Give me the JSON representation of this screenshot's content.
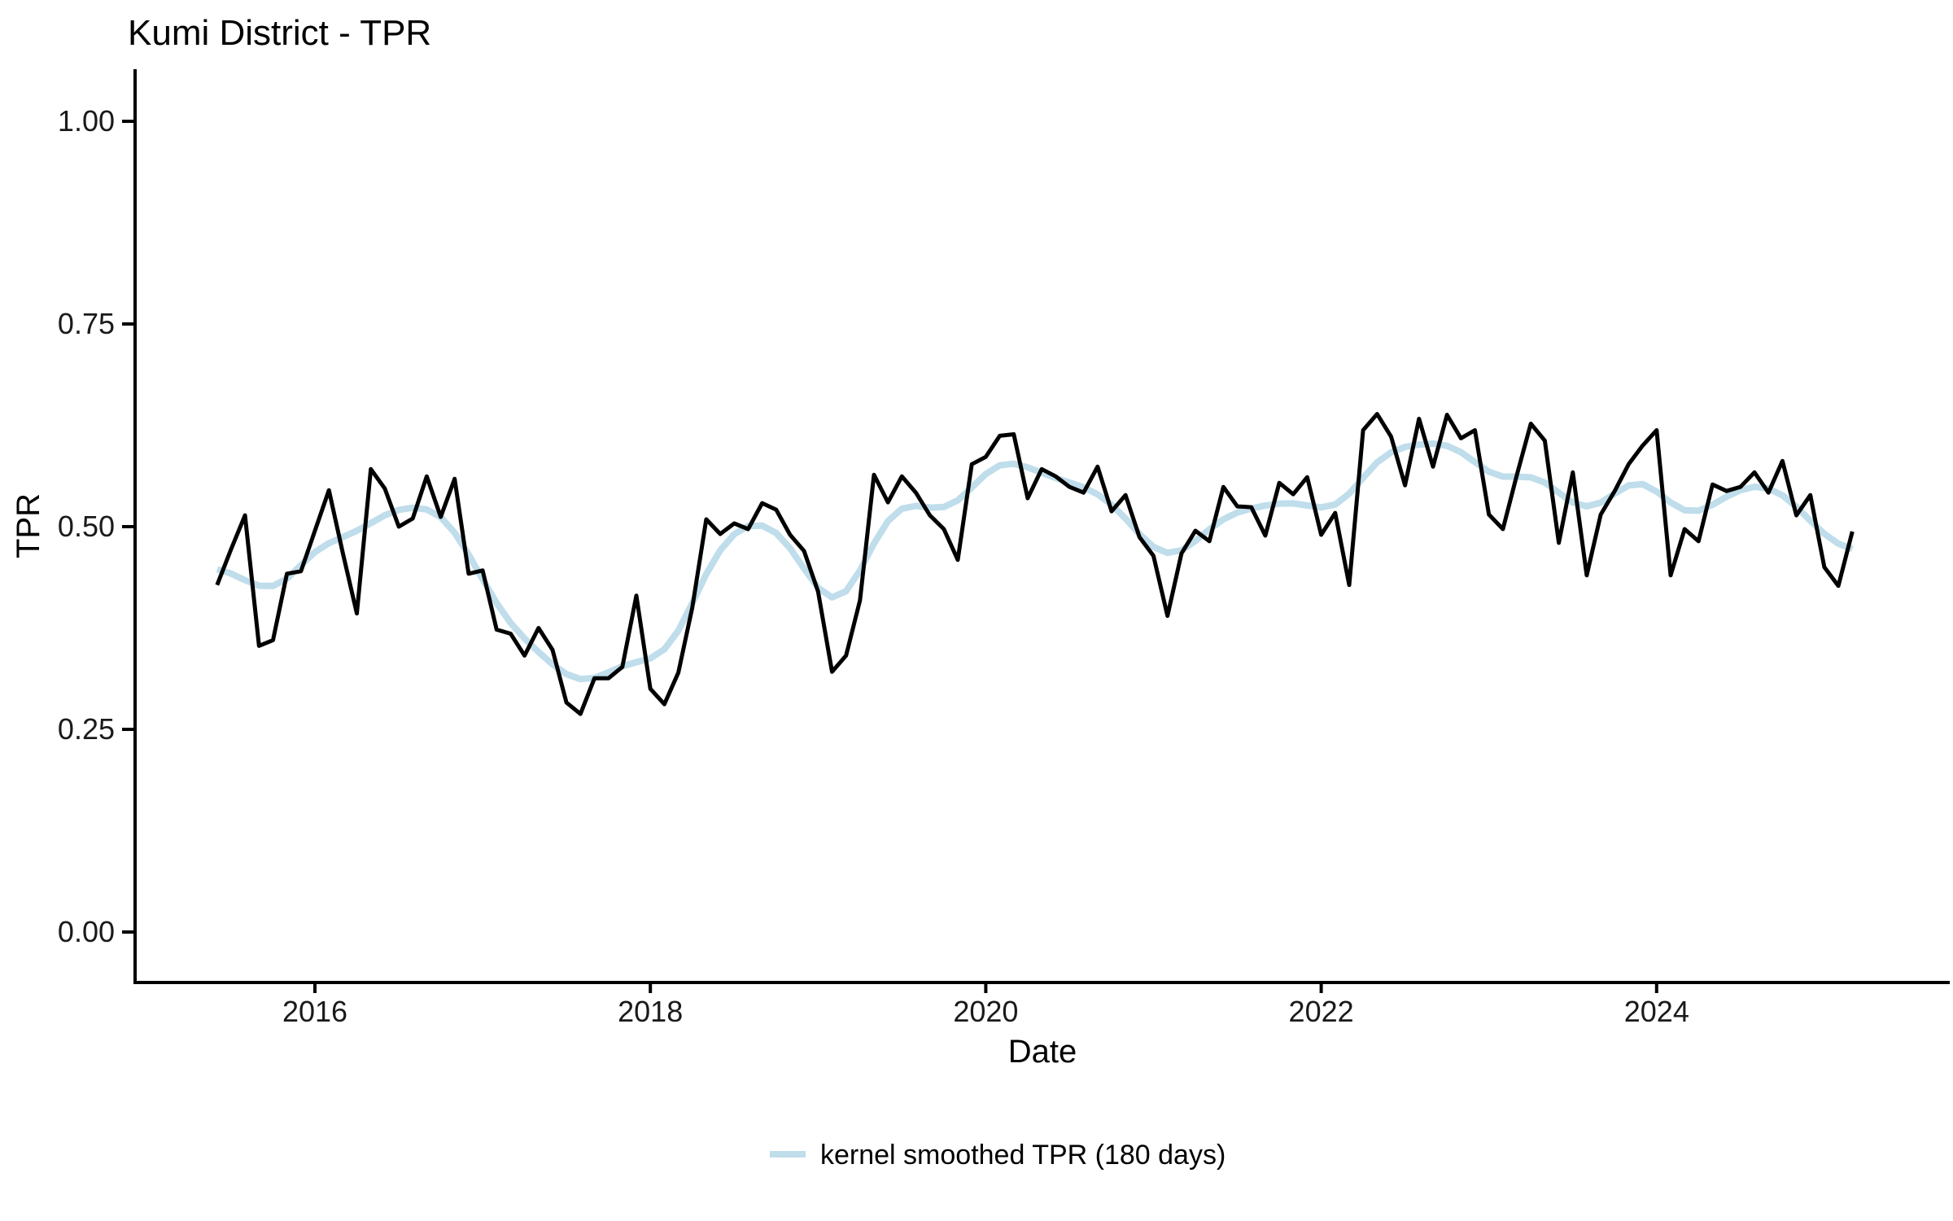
{
  "title": "Kumi District - TPR",
  "axes": {
    "x": {
      "label": "Date",
      "ticks": [
        "2016",
        "2018",
        "2020",
        "2022",
        "2024"
      ]
    },
    "y": {
      "label": "TPR",
      "ticks": [
        "0.00",
        "0.25",
        "0.50",
        "0.75",
        "1.00"
      ]
    }
  },
  "legend": {
    "items": [
      {
        "label": "kernel smoothed TPR (180 days)",
        "color": "#BFDDEB"
      }
    ]
  },
  "colors": {
    "raw_line": "#000000",
    "smoothed_line": "#BFDDEB",
    "axis_line": "#000000",
    "background": "#ffffff"
  },
  "chart_data": {
    "type": "line",
    "title": "Kumi District - TPR",
    "xlabel": "Date",
    "ylabel": "TPR",
    "frequency": "monthly",
    "x_start": "2015-06",
    "x_end": "2025-03",
    "x_tick_values": [
      2016,
      2018,
      2020,
      2022,
      2024
    ],
    "y_tick_values": [
      0,
      0.25,
      0.5,
      0.75,
      1
    ],
    "ylim": [
      0,
      1
    ],
    "grid": false,
    "legend_position": "bottom",
    "series": [
      {
        "name": "TPR",
        "kind": "raw",
        "color": "#000000",
        "values": [
          0.428,
          0.472,
          0.514,
          0.353,
          0.36,
          0.442,
          0.445,
          0.495,
          0.545,
          0.467,
          0.393,
          0.571,
          0.547,
          0.5,
          0.51,
          0.562,
          0.512,
          0.559,
          0.442,
          0.446,
          0.373,
          0.368,
          0.341,
          0.375,
          0.348,
          0.283,
          0.269,
          0.313,
          0.313,
          0.327,
          0.415,
          0.3,
          0.281,
          0.32,
          0.4,
          0.509,
          0.491,
          0.504,
          0.497,
          0.529,
          0.521,
          0.49,
          0.47,
          0.42,
          0.321,
          0.341,
          0.409,
          0.564,
          0.53,
          0.562,
          0.542,
          0.514,
          0.497,
          0.459,
          0.577,
          0.586,
          0.612,
          0.614,
          0.535,
          0.571,
          0.562,
          0.549,
          0.542,
          0.574,
          0.519,
          0.539,
          0.487,
          0.464,
          0.39,
          0.467,
          0.495,
          0.482,
          0.549,
          0.525,
          0.524,
          0.489,
          0.554,
          0.54,
          0.561,
          0.49,
          0.517,
          0.428,
          0.619,
          0.639,
          0.611,
          0.551,
          0.633,
          0.574,
          0.638,
          0.609,
          0.619,
          0.515,
          0.497,
          0.564,
          0.627,
          0.606,
          0.48,
          0.567,
          0.44,
          0.515,
          0.544,
          0.577,
          0.6,
          0.619,
          0.44,
          0.497,
          0.482,
          0.552,
          0.544,
          0.549,
          0.567,
          0.542,
          0.581,
          0.514,
          0.539,
          0.45,
          0.427,
          0.494
        ]
      },
      {
        "name": "kernel smoothed TPR (180 days)",
        "kind": "kernel_smoothed",
        "derived_from": "TPR",
        "window_days": 180,
        "sigma_months": 2,
        "half_window_months": 5,
        "color": "#BFDDEB"
      }
    ]
  }
}
